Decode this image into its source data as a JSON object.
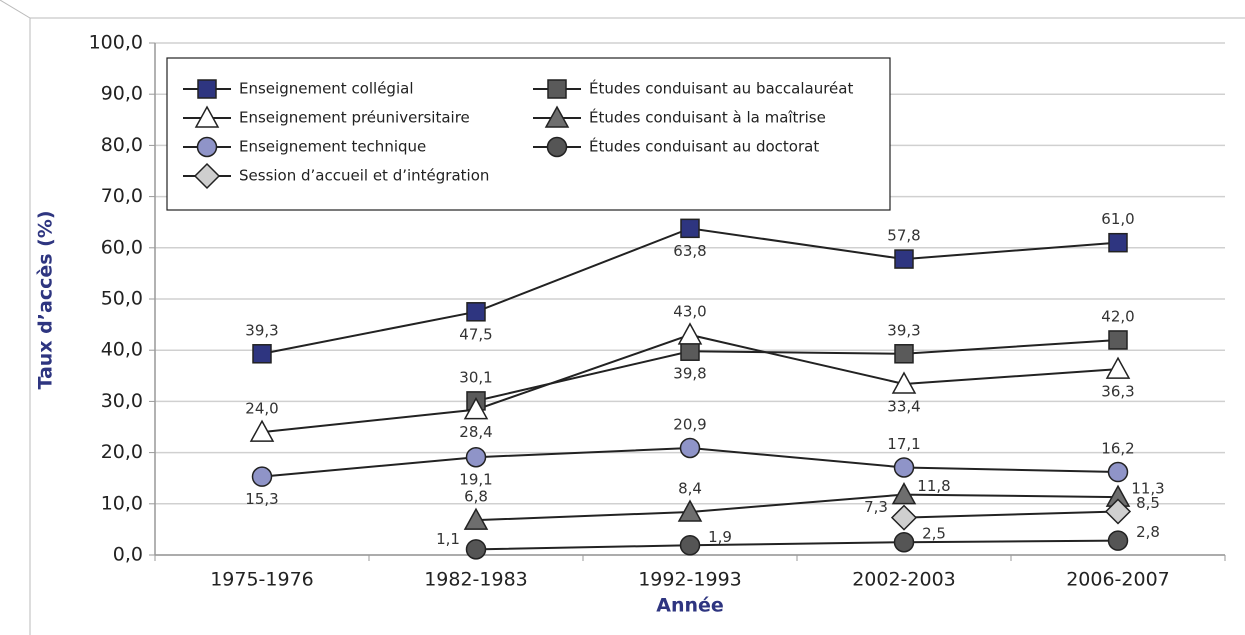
{
  "chart_data": {
    "type": "line",
    "x_label": "Année",
    "y_label": "Taux d’accès (%)",
    "categories": [
      "1975-1976",
      "1982-1983",
      "1992-1993",
      "2002-2003",
      "2006-2007"
    ],
    "ylim": [
      0,
      100
    ],
    "yticks": [
      {
        "value": 0,
        "label": "0,0"
      },
      {
        "value": 10,
        "label": "10,0"
      },
      {
        "value": 20,
        "label": "20,0"
      },
      {
        "value": 30,
        "label": "30,0"
      },
      {
        "value": 40,
        "label": "40,0"
      },
      {
        "value": 50,
        "label": "50,0"
      },
      {
        "value": 60,
        "label": "60,0"
      },
      {
        "value": 70,
        "label": "70,0"
      },
      {
        "value": 80,
        "label": "80,0"
      },
      {
        "value": 90,
        "label": "90,0"
      },
      {
        "value": 100,
        "label": "100,0"
      }
    ],
    "grid": true,
    "series": [
      {
        "name": "Enseignement collégial",
        "color": "#2e3580",
        "marker": "square",
        "values": [
          39.3,
          47.5,
          63.8,
          57.8,
          61.0
        ],
        "value_labels": [
          "39,3",
          "47,5",
          "63,8",
          "57,8",
          "61,0"
        ]
      },
      {
        "name": "Enseignement préuniversitaire",
        "color": "#ffffff",
        "marker": "triangle",
        "values": [
          24.0,
          28.4,
          43.0,
          33.4,
          36.3
        ],
        "value_labels": [
          "24,0",
          "28,4",
          "43,0",
          "33,4",
          "36,3"
        ]
      },
      {
        "name": "Enseignement technique",
        "color": "#8f94c8",
        "marker": "circle",
        "values": [
          15.3,
          19.1,
          20.9,
          17.1,
          16.2
        ],
        "value_labels": [
          "15,3",
          "19,1",
          "20,9",
          "17,1",
          "16,2"
        ]
      },
      {
        "name": "Session d’accueil et d’intégration",
        "color": "#cfcfcf",
        "marker": "diamond",
        "values": [
          null,
          null,
          null,
          7.3,
          8.5
        ],
        "value_labels": [
          null,
          null,
          null,
          "7,3",
          "8,5"
        ]
      },
      {
        "name": "Études conduisant au baccalauréat",
        "color": "#5a5a5a",
        "marker": "square",
        "values": [
          null,
          30.1,
          39.8,
          39.3,
          42.0
        ],
        "value_labels": [
          null,
          "30,1",
          "39,8",
          "39,3",
          "42,0"
        ]
      },
      {
        "name": "Études conduisant à la maîtrise",
        "color": "#6e6e6e",
        "marker": "triangle",
        "values": [
          null,
          6.8,
          8.4,
          11.8,
          11.3
        ],
        "value_labels": [
          null,
          "6,8",
          "8,4",
          "11,8",
          "11,3"
        ]
      },
      {
        "name": "Études conduisant au doctorat",
        "color": "#555555",
        "marker": "circle",
        "values": [
          null,
          1.1,
          1.9,
          2.5,
          2.8
        ],
        "value_labels": [
          null,
          "1,1",
          "1,9",
          "2,5",
          "2,8"
        ]
      }
    ]
  }
}
